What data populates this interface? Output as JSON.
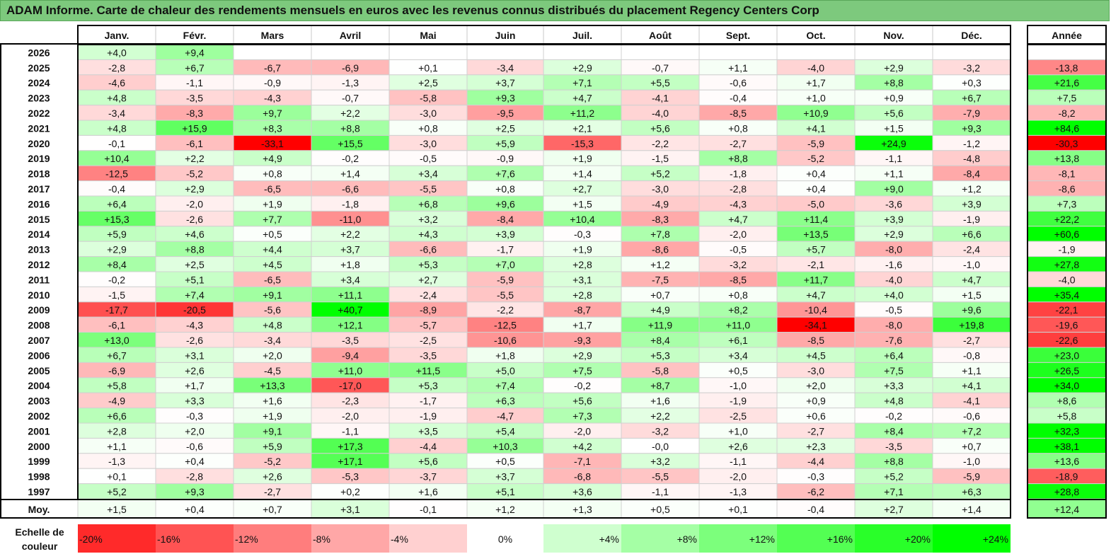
{
  "title": "ADAM Informe. Carte de chaleur des rendements mensuels en euros avec les revenus connus distribués du placement Regency Centers Corp",
  "chart_data": {
    "type": "heatmap",
    "title": "ADAM Informe. Carte de chaleur des rendements mensuels en euros avec les revenus connus distribués du placement Regency Centers Corp",
    "months": [
      "Janv.",
      "Févr.",
      "Mars",
      "Avril",
      "Mai",
      "Juin",
      "Juil.",
      "Août",
      "Sept.",
      "Oct.",
      "Nov.",
      "Déc."
    ],
    "year_header": "Année",
    "rows": [
      {
        "label": "2026",
        "values": [
          "+4,0",
          "+9,4",
          "",
          "",
          "",
          "",
          "",
          "",
          "",
          "",
          "",
          ""
        ],
        "year": ""
      },
      {
        "label": "2025",
        "values": [
          "-2,8",
          "+6,7",
          "-6,7",
          "-6,9",
          "+0,1",
          "-3,4",
          "+2,9",
          "-0,7",
          "+1,1",
          "-4,0",
          "+2,9",
          "-3,2"
        ],
        "year": "-13,8"
      },
      {
        "label": "2024",
        "values": [
          "-4,6",
          "-1,1",
          "-0,9",
          "-1,3",
          "+2,5",
          "+3,7",
          "+7,1",
          "+5,5",
          "-0,6",
          "+1,7",
          "+8,8",
          "+0,3"
        ],
        "year": "+21,6"
      },
      {
        "label": "2023",
        "values": [
          "+4,8",
          "-3,5",
          "-4,3",
          "-0,7",
          "-5,8",
          "+9,3",
          "+4,7",
          "-4,1",
          "-0,4",
          "+1,0",
          "+0,9",
          "+6,7"
        ],
        "year": "+7,5"
      },
      {
        "label": "2022",
        "values": [
          "-3,4",
          "-8,3",
          "+9,7",
          "+2,2",
          "-3,0",
          "-9,5",
          "+11,2",
          "-4,0",
          "-8,5",
          "+10,9",
          "+5,6",
          "-7,9"
        ],
        "year": "-8,2"
      },
      {
        "label": "2021",
        "values": [
          "+4,8",
          "+15,9",
          "+8,3",
          "+8,8",
          "+0,8",
          "+2,5",
          "+2,1",
          "+5,6",
          "+0,8",
          "+4,1",
          "+1,5",
          "+9,3"
        ],
        "year": "+84,6"
      },
      {
        "label": "2020",
        "values": [
          "-0,1",
          "-6,1",
          "-33,1",
          "+15,5",
          "-3,0",
          "+5,9",
          "-15,3",
          "-2,2",
          "-2,7",
          "-5,9",
          "+24,9",
          "-1,2"
        ],
        "year": "-30,3"
      },
      {
        "label": "2019",
        "values": [
          "+10,4",
          "+2,2",
          "+4,9",
          "-0,2",
          "-0,5",
          "-0,9",
          "+1,9",
          "-1,5",
          "+8,8",
          "-5,2",
          "-1,1",
          "-4,8"
        ],
        "year": "+13,8"
      },
      {
        "label": "2018",
        "values": [
          "-12,5",
          "-5,2",
          "+0,8",
          "+1,4",
          "+3,4",
          "+7,6",
          "+1,4",
          "+5,2",
          "-1,8",
          "+0,4",
          "+1,1",
          "-8,4"
        ],
        "year": "-8,1"
      },
      {
        "label": "2017",
        "values": [
          "-0,4",
          "+2,9",
          "-6,5",
          "-6,6",
          "-5,5",
          "+0,8",
          "+2,7",
          "-3,0",
          "-2,8",
          "+0,4",
          "+9,0",
          "+1,2"
        ],
        "year": "-8,6"
      },
      {
        "label": "2016",
        "values": [
          "+6,4",
          "-2,0",
          "+1,9",
          "-1,8",
          "+6,8",
          "+9,6",
          "+1,5",
          "-4,9",
          "-4,3",
          "-5,0",
          "-3,6",
          "+3,9"
        ],
        "year": "+7,3"
      },
      {
        "label": "2015",
        "values": [
          "+15,3",
          "-2,6",
          "+7,7",
          "-11,0",
          "+3,2",
          "-8,4",
          "+10,4",
          "-8,3",
          "+4,7",
          "+11,4",
          "+3,9",
          "-1,9"
        ],
        "year": "+22,2"
      },
      {
        "label": "2014",
        "values": [
          "+5,9",
          "+4,6",
          "+0,5",
          "+2,2",
          "+4,3",
          "+3,9",
          "-0,3",
          "+7,8",
          "-2,0",
          "+13,5",
          "+2,9",
          "+6,6"
        ],
        "year": "+60,6"
      },
      {
        "label": "2013",
        "values": [
          "+2,9",
          "+8,8",
          "+4,4",
          "+3,7",
          "-6,6",
          "-1,7",
          "+1,9",
          "-8,6",
          "-0,5",
          "+5,7",
          "-8,0",
          "-2,4"
        ],
        "year": "-1,9"
      },
      {
        "label": "2012",
        "values": [
          "+8,4",
          "+2,5",
          "+4,5",
          "+1,8",
          "+5,3",
          "+7,0",
          "+2,8",
          "+1,2",
          "-3,2",
          "-2,1",
          "-1,6",
          "-1,0"
        ],
        "year": "+27,8"
      },
      {
        "label": "2011",
        "values": [
          "-0,2",
          "+5,1",
          "-6,5",
          "+3,4",
          "+2,7",
          "-5,9",
          "+3,1",
          "-7,5",
          "-8,5",
          "+11,7",
          "-4,0",
          "+4,7"
        ],
        "year": "-4,0"
      },
      {
        "label": "2010",
        "values": [
          "-1,5",
          "+7,4",
          "+9,1",
          "+11,1",
          "-2,4",
          "-5,5",
          "+2,8",
          "+0,7",
          "+0,8",
          "+4,7",
          "+4,0",
          "+1,5"
        ],
        "year": "+35,4"
      },
      {
        "label": "2009",
        "values": [
          "-17,7",
          "-20,5",
          "-5,6",
          "+40,7",
          "-8,9",
          "-2,2",
          "-8,7",
          "+4,9",
          "+8,2",
          "-10,4",
          "-0,5",
          "+9,6"
        ],
        "year": "-22,1"
      },
      {
        "label": "2008",
        "values": [
          "-6,1",
          "-4,3",
          "+4,8",
          "+12,1",
          "-5,7",
          "-12,5",
          "+1,7",
          "+11,9",
          "+11,0",
          "-34,1",
          "-8,0",
          "+19,8"
        ],
        "year": "-19,6"
      },
      {
        "label": "2007",
        "values": [
          "+13,0",
          "-2,6",
          "-3,4",
          "-3,5",
          "-2,5",
          "-10,6",
          "-9,3",
          "+8,4",
          "+6,1",
          "-8,5",
          "-7,6",
          "-2,7"
        ],
        "year": "-22,6"
      },
      {
        "label": "2006",
        "values": [
          "+6,7",
          "+3,1",
          "+2,0",
          "-9,4",
          "-3,5",
          "+1,8",
          "+2,9",
          "+5,3",
          "+3,4",
          "+4,5",
          "+6,4",
          "-0,8"
        ],
        "year": "+23,0"
      },
      {
        "label": "2005",
        "values": [
          "-6,9",
          "+2,6",
          "-4,5",
          "+11,0",
          "+11,5",
          "+5,0",
          "+7,5",
          "-5,8",
          "+0,5",
          "-3,0",
          "+7,5",
          "+1,1"
        ],
        "year": "+26,5"
      },
      {
        "label": "2004",
        "values": [
          "+5,8",
          "+1,7",
          "+13,3",
          "-17,0",
          "+5,3",
          "+7,4",
          "-0,2",
          "+8,7",
          "-1,0",
          "+2,0",
          "+3,3",
          "+4,1"
        ],
        "year": "+34,0"
      },
      {
        "label": "2003",
        "values": [
          "-4,9",
          "+3,3",
          "+1,6",
          "-2,3",
          "-1,7",
          "+6,3",
          "+5,6",
          "+1,6",
          "-1,9",
          "+0,9",
          "+4,8",
          "-4,1"
        ],
        "year": "+8,6"
      },
      {
        "label": "2002",
        "values": [
          "+6,6",
          "-0,3",
          "+1,9",
          "-2,0",
          "-1,9",
          "-4,7",
          "+7,3",
          "+2,2",
          "-2,5",
          "+0,6",
          "-0,2",
          "-0,6"
        ],
        "year": "+5,8"
      },
      {
        "label": "2001",
        "values": [
          "+2,8",
          "+2,0",
          "+9,1",
          "-1,1",
          "+3,5",
          "+5,4",
          "-2,0",
          "-3,2",
          "+1,0",
          "-2,7",
          "+8,4",
          "+7,2"
        ],
        "year": "+32,3"
      },
      {
        "label": "2000",
        "values": [
          "+1,1",
          "-0,6",
          "+5,9",
          "+17,3",
          "-4,4",
          "+10,3",
          "+4,2",
          "-0,0",
          "+2,6",
          "+2,3",
          "-3,5",
          "+0,7"
        ],
        "year": "+38,1"
      },
      {
        "label": "1999",
        "values": [
          "-1,3",
          "+0,4",
          "-5,2",
          "+17,1",
          "+5,6",
          "+0,5",
          "-7,1",
          "+3,2",
          "-1,1",
          "-4,4",
          "+8,8",
          "-1,0"
        ],
        "year": "+13,6"
      },
      {
        "label": "1998",
        "values": [
          "+0,1",
          "-2,8",
          "+2,6",
          "-5,3",
          "-3,7",
          "+3,7",
          "-6,8",
          "-5,5",
          "-2,0",
          "-0,3",
          "+5,2",
          "-5,9"
        ],
        "year": "-18,9"
      },
      {
        "label": "1997",
        "values": [
          "+5,2",
          "+9,3",
          "-2,7",
          "+0,2",
          "+1,6",
          "+5,1",
          "+3,6",
          "-1,1",
          "-1,3",
          "-6,2",
          "+7,1",
          "+6,3"
        ],
        "year": "+28,8"
      }
    ],
    "average": {
      "label": "Moy.",
      "values": [
        "+1,5",
        "+0,4",
        "+0,7",
        "+3,1",
        "-0,1",
        "+1,2",
        "+1,3",
        "+0,5",
        "+0,1",
        "-0,4",
        "+2,7",
        "+1,4"
      ],
      "year": "+12,4"
    },
    "scale": {
      "label": "Echelle de couleur",
      "steps": [
        "-20%",
        "-16%",
        "-12%",
        "-8%",
        "-4%",
        "0%",
        "+4%",
        "+8%",
        "+12%",
        "+16%",
        "+20%",
        "+24%"
      ],
      "step_values": [
        -20,
        -16,
        -12,
        -8,
        -4,
        0,
        4,
        8,
        12,
        16,
        20,
        24
      ]
    },
    "colors": {
      "negative_max": "#ff0000",
      "positive_max": "#00ff00",
      "neutral": "#ffffff",
      "title_bar": "#7dc97d"
    }
  }
}
